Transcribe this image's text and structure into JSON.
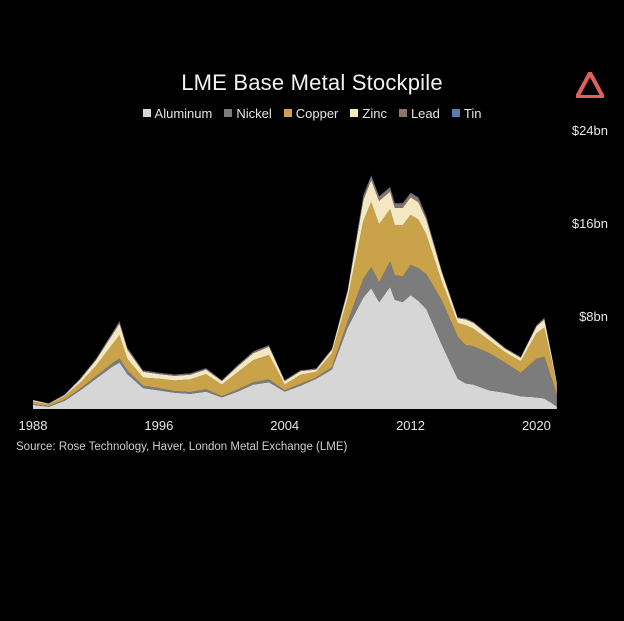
{
  "chart_data": {
    "type": "area",
    "stacked": true,
    "title": "LME Base Metal Stockpile",
    "source": "Source: Rose Technology, Haver, London Metal Exchange (LME)",
    "x_ticks": [
      {
        "value": 1988,
        "label": "1988"
      },
      {
        "value": 1996,
        "label": "1996"
      },
      {
        "value": 2004,
        "label": "2004"
      },
      {
        "value": 2012,
        "label": "2012"
      },
      {
        "value": 2020,
        "label": "2020"
      }
    ],
    "y_ticks": [
      {
        "value": 8,
        "label": "$8bn"
      },
      {
        "value": 16,
        "label": "$16bn"
      },
      {
        "value": 24,
        "label": "$24bn"
      }
    ],
    "xlim": [
      1988,
      2021.5
    ],
    "ylim": [
      0,
      24
    ],
    "y_axis_position": "right",
    "grid": false,
    "legend": "top",
    "x": [
      1988,
      1989,
      1990,
      1991,
      1992,
      1993,
      1993.5,
      1994,
      1995,
      1996,
      1997,
      1998,
      1999,
      2000,
      2001,
      2002,
      2003,
      2004,
      2005,
      2006,
      2007,
      2008,
      2009,
      2009.5,
      2010,
      2010.7,
      2011,
      2011.5,
      2012,
      2012.5,
      2013,
      2014,
      2015,
      2015.5,
      2016,
      2017,
      2018,
      2019,
      2020,
      2020.5,
      2021,
      2021.3
    ],
    "series": [
      {
        "name": "Aluminum",
        "color": "#d6d6d6",
        "values": [
          0.35,
          0.2,
          0.7,
          1.6,
          2.6,
          3.6,
          4.0,
          3.0,
          1.8,
          1.6,
          1.4,
          1.3,
          1.5,
          1.0,
          1.5,
          2.1,
          2.3,
          1.5,
          2.0,
          2.6,
          3.4,
          7.0,
          9.6,
          10.4,
          9.2,
          10.5,
          9.4,
          9.2,
          9.8,
          9.3,
          8.6,
          5.5,
          2.6,
          2.2,
          2.1,
          1.6,
          1.4,
          1.1,
          1.0,
          0.9,
          0.5,
          0.2
        ]
      },
      {
        "name": "Nickel",
        "color": "#7c7c7c",
        "values": [
          0.05,
          0.05,
          0.1,
          0.15,
          0.2,
          0.3,
          0.35,
          0.3,
          0.2,
          0.2,
          0.15,
          0.15,
          0.2,
          0.1,
          0.15,
          0.2,
          0.25,
          0.1,
          0.15,
          0.1,
          0.2,
          0.5,
          1.6,
          1.8,
          1.7,
          2.2,
          2.1,
          2.2,
          2.6,
          2.8,
          3.0,
          3.8,
          3.6,
          3.3,
          3.3,
          3.2,
          2.6,
          2.0,
          3.3,
          3.6,
          2.0,
          1.0
        ]
      },
      {
        "name": "Copper",
        "color": "#c9a24a",
        "values": [
          0.25,
          0.15,
          0.3,
          0.5,
          0.9,
          1.6,
          2.0,
          1.0,
          0.7,
          0.8,
          0.9,
          1.1,
          1.3,
          1.0,
          1.5,
          1.9,
          2.1,
          0.5,
          0.8,
          0.5,
          1.2,
          2.0,
          5.0,
          5.6,
          5.0,
          4.5,
          4.3,
          4.4,
          4.3,
          4.2,
          3.4,
          1.6,
          1.2,
          1.7,
          1.5,
          1.1,
          0.9,
          1.0,
          2.2,
          2.5,
          1.5,
          0.8
        ]
      },
      {
        "name": "Zinc",
        "color": "#f3e8c2",
        "values": [
          0.1,
          0.05,
          0.1,
          0.3,
          0.5,
          0.8,
          1.0,
          0.8,
          0.5,
          0.4,
          0.4,
          0.4,
          0.4,
          0.3,
          0.5,
          0.6,
          0.7,
          0.3,
          0.3,
          0.2,
          0.3,
          0.6,
          1.8,
          1.9,
          2.0,
          1.5,
          1.5,
          1.5,
          1.5,
          1.5,
          1.3,
          0.8,
          0.4,
          0.5,
          0.5,
          0.4,
          0.3,
          0.3,
          0.6,
          0.7,
          0.4,
          0.2
        ]
      },
      {
        "name": "Lead",
        "color": "#8f7468",
        "values": [
          0.03,
          0.02,
          0.03,
          0.05,
          0.08,
          0.12,
          0.15,
          0.12,
          0.08,
          0.08,
          0.08,
          0.08,
          0.08,
          0.06,
          0.08,
          0.1,
          0.1,
          0.06,
          0.06,
          0.06,
          0.06,
          0.1,
          0.3,
          0.3,
          0.3,
          0.3,
          0.3,
          0.3,
          0.3,
          0.3,
          0.2,
          0.1,
          0.05,
          0.06,
          0.06,
          0.05,
          0.05,
          0.05,
          0.08,
          0.1,
          0.06,
          0.03
        ]
      },
      {
        "name": "Tin",
        "color": "#5b79b3",
        "values": [
          0.02,
          0.02,
          0.02,
          0.03,
          0.04,
          0.05,
          0.06,
          0.05,
          0.04,
          0.04,
          0.04,
          0.04,
          0.04,
          0.03,
          0.04,
          0.05,
          0.05,
          0.03,
          0.03,
          0.03,
          0.03,
          0.05,
          0.1,
          0.1,
          0.1,
          0.1,
          0.1,
          0.1,
          0.1,
          0.1,
          0.08,
          0.05,
          0.03,
          0.03,
          0.03,
          0.03,
          0.03,
          0.03,
          0.04,
          0.05,
          0.03,
          0.02
        ]
      }
    ]
  }
}
